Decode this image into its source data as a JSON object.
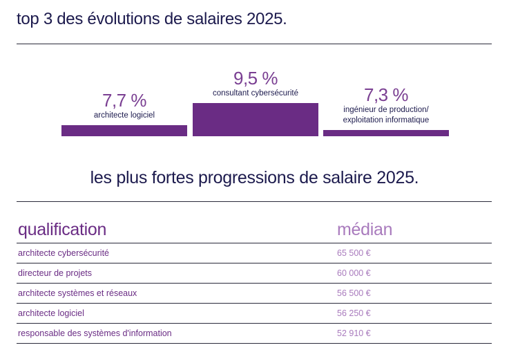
{
  "top_section": {
    "title": "top 3 des évolutions de salaires 2025."
  },
  "chart_data": {
    "type": "bar",
    "categories": [
      "architecte logiciel",
      "consultant cybersécurité",
      "ingénieur de production/\nexploitation informatique"
    ],
    "values": [
      7.7,
      9.5,
      7.3
    ],
    "value_labels": [
      "7,7 %",
      "9,5 %",
      "7,3 %"
    ],
    "color": "#6a2c84",
    "ylim": [
      0,
      9.5
    ]
  },
  "table_section": {
    "title": "les plus fortes progressions de salaire 2025.",
    "columns": [
      "qualification",
      "médian"
    ],
    "rows": [
      {
        "qualification": "architecte cybersécurité",
        "median": "65 500 €"
      },
      {
        "qualification": "directeur de projets",
        "median": "60 000 €"
      },
      {
        "qualification": "architecte systèmes et réseaux",
        "median": "56 500 €"
      },
      {
        "qualification": "architecte logiciel",
        "median": "56 250 €"
      },
      {
        "qualification": "responsable des systèmes d'information",
        "median": "52 910 €"
      }
    ]
  },
  "colors": {
    "accent": "#6a2c84",
    "accent_light": "#a97bbd",
    "text": "#1c1a4d"
  }
}
